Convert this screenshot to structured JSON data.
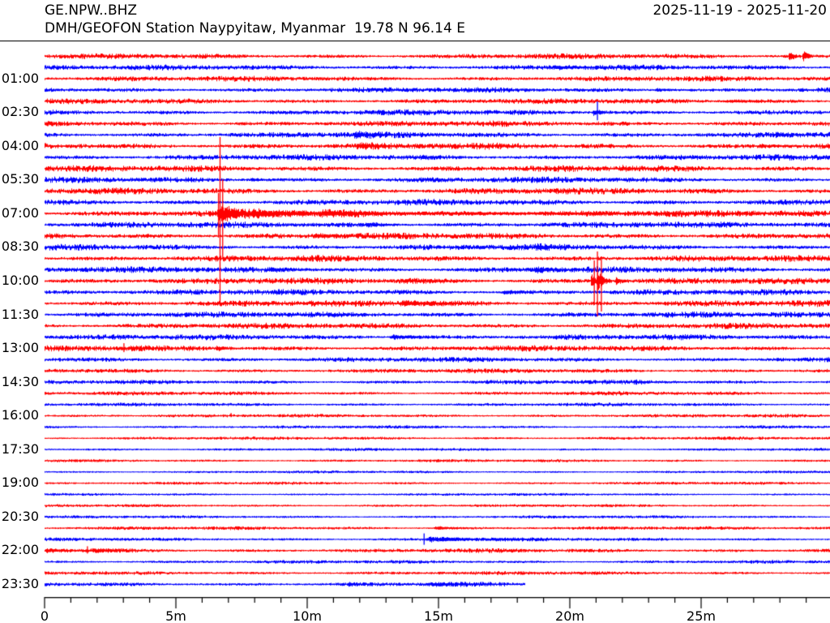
{
  "header": {
    "station_id": "GE.NPW..BHZ",
    "date_range": "2025-11-19 - 2025-11-20",
    "station_description": "DMH/GEOFON Station Naypyitaw, Myanmar  19.78 N 96.14 E"
  },
  "chart_data": {
    "type": "helicorder-seismogram",
    "title": "GE.NPW..BHZ",
    "date_range": "2025-11-19 - 2025-11-20",
    "minutes_per_line": 30,
    "x_axis": {
      "tick_labels": [
        "0",
        "5m",
        "10m",
        "15m",
        "20m",
        "25m"
      ],
      "tick_minutes": [
        0,
        5,
        10,
        15,
        20,
        25
      ],
      "minor_tick_interval_minutes": 1,
      "visible_range_minutes": [
        0,
        30
      ]
    },
    "y_axis": {
      "tick_labels": [
        "01:00",
        "02:30",
        "04:00",
        "05:30",
        "07:00",
        "08:30",
        "10:00",
        "11:30",
        "13:00",
        "14:30",
        "16:00",
        "17:30",
        "19:00",
        "20:30",
        "22:00",
        "23:30"
      ],
      "label_every_n_traces": 3,
      "first_labeled_trace_index": 2
    },
    "colors": {
      "trace_even": "#ff0000",
      "trace_odd": "#0000ff",
      "axis": "#000000",
      "text": "#000000",
      "background": "#ffffff"
    },
    "traces": [
      {
        "start": "00:00",
        "color": "red",
        "noise": 1.8,
        "events": [
          {
            "type": "burst",
            "t": 28.32,
            "dur": 0.35,
            "amp": 7
          },
          {
            "type": "burst",
            "t": 28.85,
            "dur": 0.35,
            "amp": 8
          }
        ]
      },
      {
        "start": "00:30",
        "color": "blue",
        "noise": 1.8,
        "events": [
          {
            "type": "burst",
            "t": 19.3,
            "dur": 2.4,
            "amp": 1.4
          }
        ]
      },
      {
        "start": "01:00",
        "color": "red",
        "noise": 1.8,
        "events": []
      },
      {
        "start": "01:30",
        "color": "blue",
        "noise": 1.8,
        "events": [
          {
            "type": "burst",
            "t": 23.2,
            "dur": 1.6,
            "amp": 1.5
          }
        ]
      },
      {
        "start": "02:00",
        "color": "red",
        "noise": 1.8,
        "events": [
          {
            "type": "burst",
            "t": 25.9,
            "dur": 3.0,
            "amp": 1.2
          }
        ]
      },
      {
        "start": "02:30",
        "color": "blue",
        "noise": 1.9,
        "events": [
          {
            "type": "burst",
            "t": 20.85,
            "dur": 0.7,
            "amp": 4
          },
          {
            "type": "vline",
            "t": 21.05,
            "up": 13,
            "down": 10
          }
        ]
      },
      {
        "start": "03:00",
        "color": "red",
        "noise": 2.0,
        "events": []
      },
      {
        "start": "03:30",
        "color": "blue",
        "noise": 2.0,
        "events": [
          {
            "type": "burst",
            "t": 11.7,
            "dur": 1.4,
            "amp": 3.0
          },
          {
            "type": "burst",
            "t": 27.8,
            "dur": 1.1,
            "amp": 2.0
          }
        ]
      },
      {
        "start": "04:00",
        "color": "red",
        "noise": 2.2,
        "events": [
          {
            "type": "burst",
            "t": 11.8,
            "dur": 1.7,
            "amp": 2.0
          },
          {
            "type": "burst",
            "t": 27.1,
            "dur": 2.0,
            "amp": 1.4
          }
        ]
      },
      {
        "start": "04:30",
        "color": "blue",
        "noise": 2.0,
        "events": []
      },
      {
        "start": "05:00",
        "color": "red",
        "noise": 2.2,
        "events": [
          {
            "type": "burst",
            "t": 21.9,
            "dur": 0.9,
            "amp": 1.8
          }
        ]
      },
      {
        "start": "05:30",
        "color": "blue",
        "noise": 2.0,
        "events": [
          {
            "type": "burst",
            "t": 7.8,
            "dur": 1.1,
            "amp": 1.6
          }
        ]
      },
      {
        "start": "06:00",
        "color": "red",
        "noise": 2.2,
        "events": []
      },
      {
        "start": "06:30",
        "color": "blue",
        "noise": 2.1,
        "events": []
      },
      {
        "start": "07:00",
        "color": "red",
        "noise": 2.2,
        "events": [
          {
            "type": "burst",
            "t": 6.55,
            "dur": 1.25,
            "amp": 10,
            "k": 1.3
          },
          {
            "type": "burst",
            "t": 7.8,
            "dur": 2.4,
            "amp": 4.5,
            "k": 1.5
          },
          {
            "type": "burst",
            "t": 10.2,
            "dur": 5,
            "amp": 2.2,
            "k": 1.2
          },
          {
            "type": "burst",
            "t": 15.2,
            "dur": 14.5,
            "amp": 1.2,
            "k": 1.5
          },
          {
            "type": "vline",
            "t": 6.62,
            "up": 25,
            "down": 30
          },
          {
            "type": "vline",
            "t": 6.68,
            "up": 94,
            "down": 114
          },
          {
            "type": "vline",
            "t": 6.78,
            "up": 42,
            "down": 55
          }
        ]
      },
      {
        "start": "07:30",
        "color": "blue",
        "noise": 2.1,
        "events": [
          {
            "type": "burst",
            "t": 12.2,
            "dur": 1.4,
            "amp": 2.0
          }
        ]
      },
      {
        "start": "08:00",
        "color": "red",
        "noise": 2.2,
        "events": [
          {
            "type": "burst",
            "t": 10.2,
            "dur": 1.6,
            "amp": 2.0
          }
        ]
      },
      {
        "start": "08:30",
        "color": "blue",
        "noise": 2.1,
        "events": [
          {
            "type": "burst",
            "t": 18.7,
            "dur": 1.3,
            "amp": 2.0
          }
        ]
      },
      {
        "start": "09:00",
        "color": "red",
        "noise": 2.2,
        "events": []
      },
      {
        "start": "09:30",
        "color": "blue",
        "noise": 2.1,
        "events": [
          {
            "type": "burst",
            "t": 8.4,
            "dur": 3.0,
            "amp": 1.3
          },
          {
            "type": "burst",
            "t": 18.6,
            "dur": 1.1,
            "amp": 3.2
          }
        ]
      },
      {
        "start": "10:00",
        "color": "red",
        "noise": 2.2,
        "events": [
          {
            "type": "burst",
            "t": 13.4,
            "dur": 3.5,
            "amp": 1.1
          },
          {
            "type": "burst",
            "t": 20.78,
            "dur": 0.4,
            "amp": 10
          },
          {
            "type": "burst",
            "t": 21.0,
            "dur": 0.6,
            "amp": 13
          },
          {
            "type": "burst",
            "t": 21.7,
            "dur": 0.5,
            "amp": 5
          },
          {
            "type": "vline",
            "t": 20.93,
            "up": 25,
            "down": 30
          },
          {
            "type": "vline",
            "t": 21.05,
            "up": 36,
            "down": 44
          },
          {
            "type": "vline",
            "t": 21.2,
            "up": 30,
            "down": 38
          }
        ]
      },
      {
        "start": "10:30",
        "color": "blue",
        "noise": 2.0,
        "events": [
          {
            "type": "burst",
            "t": 17.4,
            "dur": 1.3,
            "amp": 1.8
          }
        ]
      },
      {
        "start": "11:00",
        "color": "red",
        "noise": 2.2,
        "events": [
          {
            "type": "burst",
            "t": 13.4,
            "dur": 3.4,
            "amp": 2.0
          }
        ]
      },
      {
        "start": "11:30",
        "color": "blue",
        "noise": 2.0,
        "events": []
      },
      {
        "start": "12:00",
        "color": "red",
        "noise": 2.0,
        "events": []
      },
      {
        "start": "12:30",
        "color": "blue",
        "noise": 1.9,
        "events": [
          {
            "type": "burst",
            "t": 13.1,
            "dur": 2.1,
            "amp": 2.8
          }
        ]
      },
      {
        "start": "13:00",
        "color": "red",
        "noise": 2.0,
        "events": [
          {
            "type": "burst",
            "t": 3.1,
            "dur": 1.6,
            "amp": 1.6
          },
          {
            "type": "burst",
            "t": 6.5,
            "dur": 0.8,
            "amp": 2.4
          },
          {
            "type": "vline",
            "t": 3.02,
            "up": 6,
            "down": 5
          }
        ]
      },
      {
        "start": "13:30",
        "color": "blue",
        "noise": 1.7,
        "events": []
      },
      {
        "start": "14:00",
        "color": "red",
        "noise": 1.5,
        "events": []
      },
      {
        "start": "14:30",
        "color": "blue",
        "noise": 1.4,
        "events": [
          {
            "type": "burst",
            "t": 22.4,
            "dur": 0.9,
            "amp": 1.4
          }
        ]
      },
      {
        "start": "15:00",
        "color": "red",
        "noise": 1.3,
        "events": []
      },
      {
        "start": "15:30",
        "color": "blue",
        "noise": 1.1,
        "events": []
      },
      {
        "start": "16:00",
        "color": "red",
        "noise": 1.1,
        "events": [
          {
            "type": "vline",
            "t": 7.1,
            "up": 3,
            "down": 2
          }
        ]
      },
      {
        "start": "16:30",
        "color": "blue",
        "noise": 1.0,
        "events": []
      },
      {
        "start": "17:00",
        "color": "red",
        "noise": 1.0,
        "events": []
      },
      {
        "start": "17:30",
        "color": "blue",
        "noise": 0.9,
        "events": []
      },
      {
        "start": "18:00",
        "color": "red",
        "noise": 0.9,
        "events": []
      },
      {
        "start": "18:30",
        "color": "blue",
        "noise": 0.8,
        "events": []
      },
      {
        "start": "19:00",
        "color": "red",
        "noise": 0.9,
        "events": []
      },
      {
        "start": "19:30",
        "color": "blue",
        "noise": 0.8,
        "events": []
      },
      {
        "start": "20:00",
        "color": "red",
        "noise": 0.9,
        "events": []
      },
      {
        "start": "20:30",
        "color": "blue",
        "noise": 0.9,
        "events": []
      },
      {
        "start": "21:00",
        "color": "red",
        "noise": 1.1,
        "events": [
          {
            "type": "burst",
            "t": 14.8,
            "dur": 1.4,
            "amp": 2.4
          }
        ]
      },
      {
        "start": "21:30",
        "color": "blue",
        "noise": 1.1,
        "events": [
          {
            "type": "burst",
            "t": 14.5,
            "dur": 2.4,
            "amp": 3.0,
            "k": 1.8
          },
          {
            "type": "burst",
            "t": 16.9,
            "dur": 2.6,
            "amp": 1.2
          },
          {
            "type": "vline",
            "t": 14.45,
            "up": 7,
            "down": 7
          }
        ]
      },
      {
        "start": "22:00",
        "color": "red",
        "noise": 1.4,
        "events": [
          {
            "type": "burst",
            "t": 0.0,
            "dur": 1.5,
            "amp": 1.6
          },
          {
            "type": "burst",
            "t": 1.7,
            "dur": 1.8,
            "amp": 2.0
          },
          {
            "type": "vline",
            "t": 1.63,
            "up": 5,
            "down": 4
          }
        ]
      },
      {
        "start": "22:30",
        "color": "blue",
        "noise": 1.1,
        "events": []
      },
      {
        "start": "23:00",
        "color": "red",
        "noise": 1.2,
        "events": []
      },
      {
        "start": "23:30",
        "color": "blue",
        "noise": 1.4,
        "end_minute": 18.3,
        "events": [
          {
            "type": "burst",
            "t": 11.5,
            "dur": 0.8,
            "amp": 1.4
          },
          {
            "type": "burst",
            "t": 14.5,
            "dur": 2.6,
            "amp": 1.8
          }
        ]
      }
    ]
  }
}
